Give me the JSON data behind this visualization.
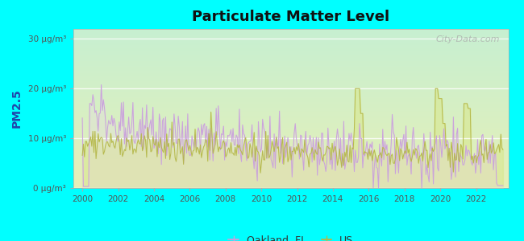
{
  "title": "Particulate Matter Level",
  "ylabel": "PM2.5",
  "background_outer": "#00FFFF",
  "ylim": [
    0,
    32
  ],
  "yticks": [
    0,
    10,
    20,
    30
  ],
  "ytick_labels": [
    "0 μg/m³",
    "10 μg/m³",
    "20 μg/m³",
    "30 μg/m³"
  ],
  "xtick_start": 2000,
  "xtick_end": 2022,
  "xtick_step": 2,
  "oakland_color": "#c9a0dc",
  "us_color": "#b5b84a",
  "legend_oakland": "Oakland, FL",
  "legend_us": "US",
  "watermark": "City-Data.com"
}
